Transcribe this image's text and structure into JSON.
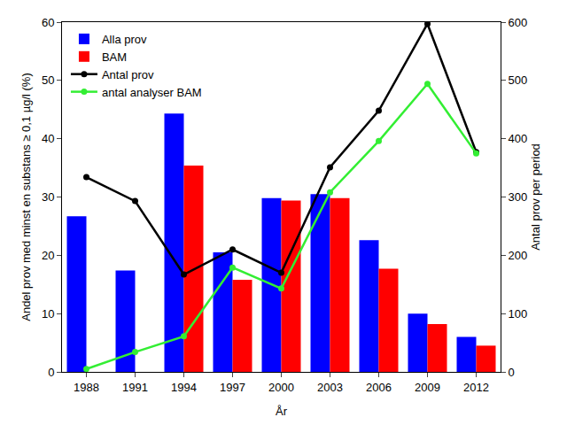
{
  "chart_data": {
    "type": "bar",
    "categories": [
      "1988",
      "1991",
      "1994",
      "1997",
      "2000",
      "2003",
      "2006",
      "2009",
      "2012"
    ],
    "xlabel": "År",
    "ylabel": "Andel prov med minst en substans ≥ 0,1 µg/l (%)",
    "y2label": "Antal prov per period",
    "ylim": [
      0,
      60
    ],
    "yticks": [
      0,
      10,
      20,
      30,
      40,
      50,
      60
    ],
    "y2lim": [
      0,
      600
    ],
    "y2ticks": [
      0,
      100,
      200,
      300,
      400,
      500,
      600
    ],
    "grid": false,
    "legend": "top left",
    "series": [
      {
        "name": "Alla prov",
        "type": "bar",
        "color": "#0000ff",
        "values": [
          26.7,
          17.4,
          44.3,
          20.5,
          29.8,
          30.5,
          22.6,
          10.0,
          6.0
        ]
      },
      {
        "name": "BAM",
        "type": "bar",
        "color": "#ff0000",
        "values": [
          null,
          null,
          35.4,
          15.8,
          29.4,
          29.8,
          17.7,
          8.2,
          4.5
        ]
      },
      {
        "name": "Antal prov",
        "type": "line",
        "color": "#000000",
        "marker": "circle",
        "axis": "y2",
        "values": [
          334,
          293,
          167,
          210,
          170,
          351,
          448,
          597,
          377
        ]
      },
      {
        "name": "antal analyser BAM",
        "type": "line",
        "color": "#33ee33",
        "marker": "circle",
        "axis": "y2",
        "values": [
          5,
          34,
          61,
          179,
          143,
          308,
          396,
          494,
          375
        ]
      }
    ]
  }
}
